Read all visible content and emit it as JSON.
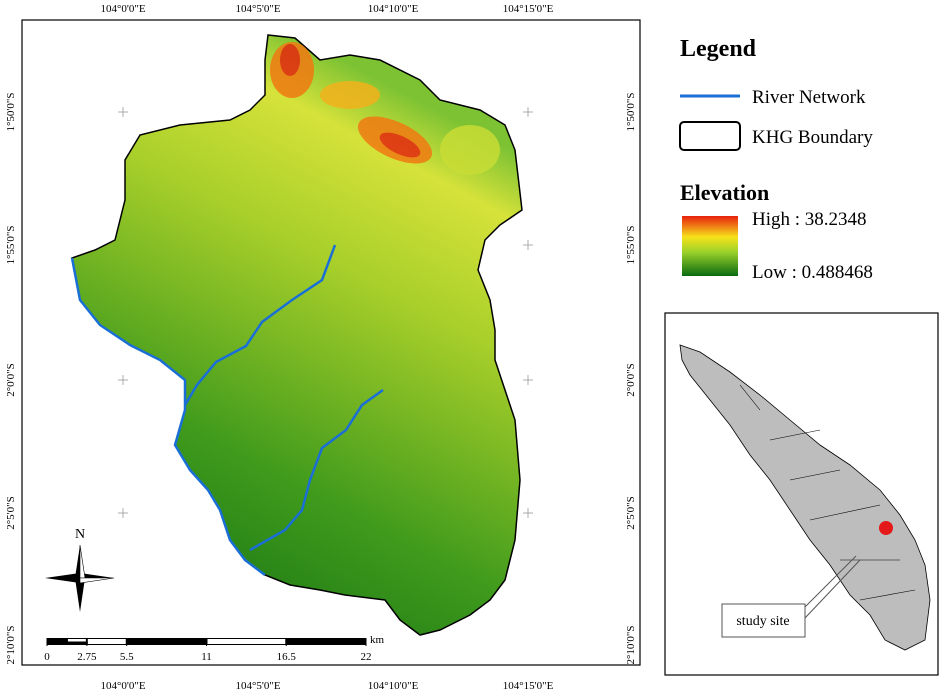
{
  "map": {
    "top_labels": [
      "104°0'0\"E",
      "104°5'0\"E",
      "104°10'0\"E",
      "104°15'0\"E"
    ],
    "bottom_labels": [
      "104°0'0\"E",
      "104°5'0\"E",
      "104°10'0\"E",
      "104°15'0\"E"
    ],
    "left_labels": [
      "1°50'0\"S",
      "1°55'0\"S",
      "2°0'0\"S",
      "2°5'0\"S",
      "2°10'0\"S"
    ],
    "right_labels": [
      "1°50'0\"S",
      "1°55'0\"S",
      "2°0'0\"S",
      "2°5'0\"S",
      "2°10'0\"S"
    ],
    "north": "N",
    "scale": {
      "unit": "km",
      "ticks": [
        0,
        2.75,
        5.5,
        11,
        16.5,
        22
      ]
    }
  },
  "legend": {
    "title": "Legend",
    "river": "River Network",
    "boundary": "KHG Boundary",
    "elevation_title": "Elevation",
    "high": "High : 38.2348",
    "low": "Low : 0.488468"
  },
  "inset": {
    "callout": "study site"
  }
}
